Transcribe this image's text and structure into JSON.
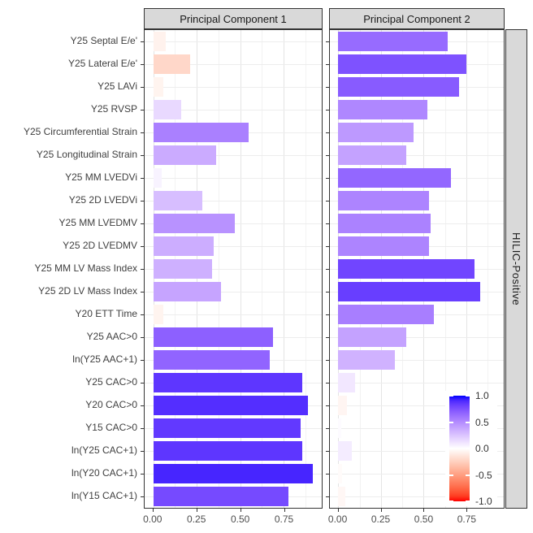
{
  "figure": {
    "facet_column_labels": [
      "Principal Component 1",
      "Principal Component 2"
    ],
    "facet_row_label": "HILIC-Positive"
  },
  "x_axis": {
    "tick_labels": [
      "0.00",
      "0.25",
      "0.50",
      "0.75"
    ],
    "tick_values": [
      0,
      0.25,
      0.5,
      0.75
    ]
  },
  "legend": {
    "tick_labels": [
      "1.0",
      "0.5",
      "0.0",
      "-0.5",
      "-1.0"
    ],
    "tick_values": [
      1,
      0.5,
      0,
      -0.5,
      -1
    ]
  },
  "colors": {
    "strip_bg": "#D9D9D9",
    "panel_border": "#333333",
    "grid_major": "#E4E4E4",
    "grid_minor": "#F2F2F2",
    "axis_text": "#4D4D4D",
    "scale_high": "#0000FF",
    "scale_mid": "#FFFFFF",
    "scale_low": "#FF0000"
  },
  "chart_data": {
    "type": "bar",
    "orientation": "horizontal",
    "facets": [
      "Principal Component 1",
      "Principal Component 2"
    ],
    "facet_row": "HILIC-Positive",
    "categories": [
      "Y25 Septal E/e'",
      "Y25 Lateral E/e'",
      "Y25 LAVi",
      "Y25 RVSP",
      "Y25 Circumferential Strain",
      "Y25 Longitudinal Strain",
      "Y25 MM LVEDVi",
      "Y25 2D LVEDVi",
      "Y25 MM LVEDMV",
      "Y25 2D LVEDMV",
      "Y25 MM LV Mass Index",
      "Y25 2D LV Mass Index",
      "Y20 ETT Time",
      "Y25 AAC>0",
      "ln(Y25 AAC+1)",
      "Y25 CAC>0",
      "Y20 CAC>0",
      "Y15 CAC>0",
      "ln(Y25 CAC+1)",
      "ln(Y20 CAC+1)",
      "ln(Y15 CAC+1)"
    ],
    "series": [
      {
        "name": "Principal Component 1",
        "values": [
          -0.07,
          -0.21,
          -0.06,
          0.16,
          0.55,
          0.36,
          0.05,
          0.28,
          0.47,
          0.35,
          0.34,
          0.39,
          -0.06,
          0.69,
          0.67,
          0.86,
          0.89,
          0.85,
          0.86,
          0.92,
          0.78
        ]
      },
      {
        "name": "Principal Component 2",
        "values": [
          0.64,
          0.75,
          0.71,
          0.52,
          0.44,
          0.4,
          0.66,
          0.53,
          0.54,
          0.53,
          0.8,
          0.83,
          0.56,
          0.4,
          0.33,
          0.1,
          -0.05,
          0.015,
          0.08,
          -0.02,
          -0.04
        ]
      }
    ],
    "xlim": [
      -0.05,
      0.97
    ],
    "x_ticks": [
      0,
      0.25,
      0.5,
      0.75
    ],
    "fill_scale": {
      "type": "gradient2",
      "low": "#FF0000",
      "mid": "#FFFFFF",
      "high": "#0000FF",
      "domain": [
        -1,
        1
      ]
    },
    "grid": true,
    "legend_position": "inside bottom-right of Principal Component 2 panel"
  }
}
